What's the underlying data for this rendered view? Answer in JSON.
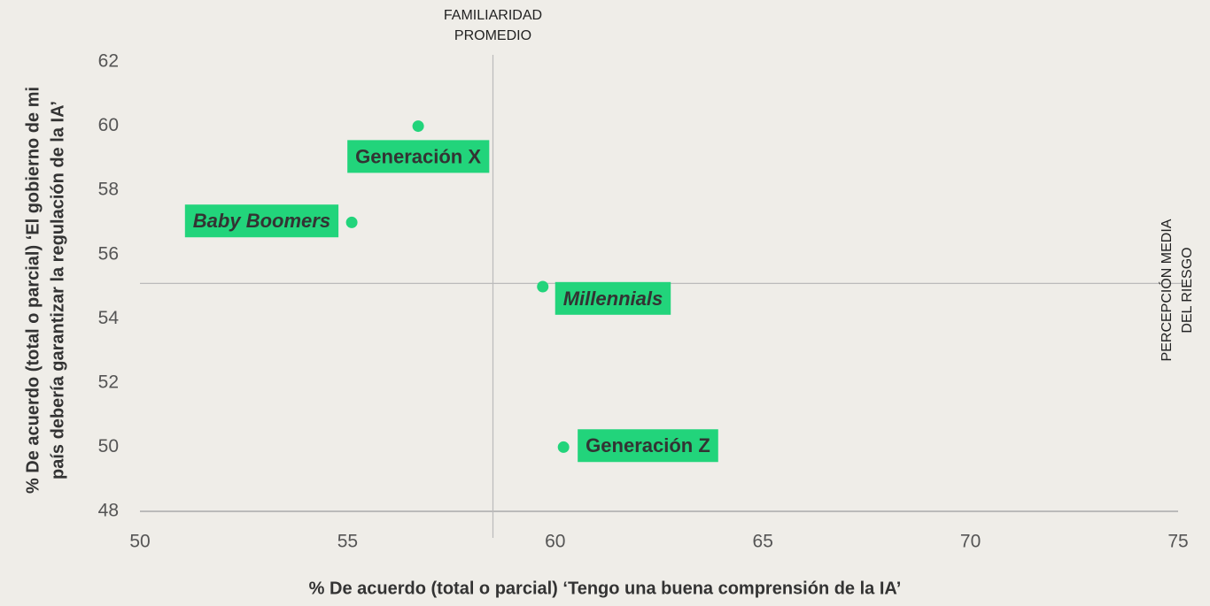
{
  "chart_data": {
    "type": "scatter",
    "xlabel": "% De acuerdo (total o parcial) ‘Tengo una buena comprensión de la IA’",
    "ylabel": [
      "% De acuerdo (total o parcial) ‘El gobierno de mi",
      "país debería garantizar la regulación de la IA’"
    ],
    "xlim": [
      50,
      75
    ],
    "xticks": [
      50,
      55,
      60,
      65,
      70,
      75
    ],
    "ylim": [
      48,
      62
    ],
    "yticks": [
      48,
      50,
      52,
      54,
      56,
      58,
      60,
      62
    ],
    "color": "#22d47b",
    "points": [
      {
        "label": "Generación X",
        "x": 56.7,
        "y": 60,
        "italic": false
      },
      {
        "label": "Baby Boomers",
        "x": 55.1,
        "y": 57,
        "italic": true
      },
      {
        "label": "Millennials",
        "x": 59.7,
        "y": 55,
        "italic": true
      },
      {
        "label": "Generación Z",
        "x": 60.2,
        "y": 50,
        "italic": false
      }
    ],
    "vline": {
      "x": 58.5,
      "label": [
        "FAMILIARIDAD",
        "PROMEDIO"
      ]
    },
    "hline": {
      "y": 55.1,
      "label": [
        "PERCEPCIÓN MEDIA",
        "DEL RIESGO"
      ]
    }
  }
}
